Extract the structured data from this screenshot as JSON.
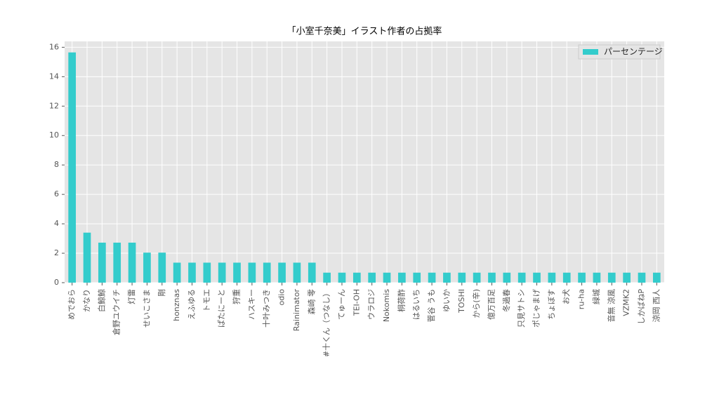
{
  "chart_data": {
    "type": "bar",
    "title": "「小室千奈美」イラスト作者の占拠率",
    "categories": [
      "めでおら",
      "かなり",
      "白鯨鯨",
      "倉野ユウイチ",
      "灯雷",
      "せいこさま",
      "剛",
      "honznas",
      "えふゆる",
      "トモエ",
      "ぱたにーと",
      "狩重",
      "ハスキー",
      "十叶みつき",
      "odio",
      "Rainimator",
      "森崎 零",
      "#十くん（つなし）",
      "てゅーん",
      "TEI-OH",
      "ウラロジ",
      "Nokomis",
      "桐荷酢",
      "はるいち",
      "菅谷 うも",
      "ゆいか",
      "TOSHI",
      "から(辛)",
      "億万百足",
      "冬過春",
      "只見サトシ",
      "ポじゃまげ",
      "ちょぼす",
      "お犬",
      "ru-ha",
      "緑城",
      "音無 涼風",
      "VZMK2",
      "しかばねP",
      "涼岡 西人"
    ],
    "series": [
      {
        "name": "パーセンテージ",
        "color": "#33cccc",
        "values": [
          15.65,
          3.4,
          2.72,
          2.72,
          2.72,
          2.04,
          2.04,
          1.36,
          1.36,
          1.36,
          1.36,
          1.36,
          1.36,
          1.36,
          1.36,
          1.36,
          1.36,
          0.68,
          0.68,
          0.68,
          0.68,
          0.68,
          0.68,
          0.68,
          0.68,
          0.68,
          0.68,
          0.68,
          0.68,
          0.68,
          0.68,
          0.68,
          0.68,
          0.68,
          0.68,
          0.68,
          0.68,
          0.68,
          0.68,
          0.68
        ]
      }
    ],
    "ylim": [
      0,
      16.4
    ],
    "yticks": [
      0,
      2,
      4,
      6,
      8,
      10,
      12,
      14,
      16
    ],
    "grid": true,
    "legend": "upper right"
  }
}
